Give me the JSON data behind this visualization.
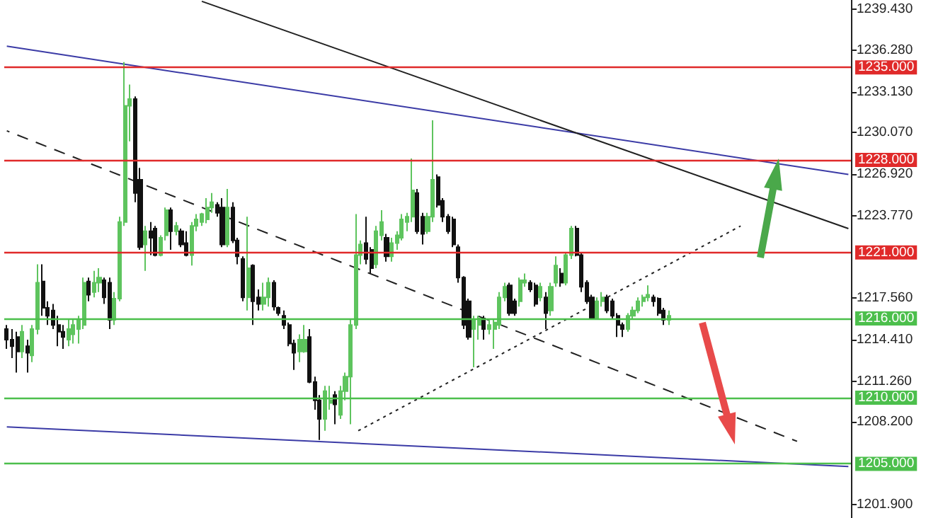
{
  "chart_data": {
    "type": "candlestick",
    "tick_labels": "y",
    "categories": [
      null,
      null,
      null,
      null,
      null,
      null,
      null,
      null,
      null,
      null,
      null,
      null,
      null,
      null,
      null,
      null,
      null,
      null,
      null,
      null,
      null,
      null,
      null,
      null,
      null,
      null,
      null,
      null,
      null,
      null,
      null,
      null,
      null,
      null,
      null,
      null,
      null,
      null,
      null,
      null,
      null,
      null,
      null,
      null,
      null,
      null,
      null,
      null,
      null,
      null,
      null,
      null,
      null,
      null,
      null,
      null,
      null,
      null,
      null,
      null,
      null,
      null,
      null,
      null,
      null,
      null,
      null,
      null,
      null,
      null,
      null,
      null,
      null,
      null,
      null,
      null,
      null,
      null,
      null,
      null,
      null,
      null,
      null,
      null,
      null,
      null,
      null,
      null,
      null,
      null,
      null,
      null,
      null,
      null,
      null,
      null,
      null,
      null,
      null,
      null,
      null,
      null,
      null,
      null,
      null,
      null,
      null,
      null,
      null,
      null,
      null,
      null,
      null,
      null,
      null,
      null,
      null,
      null,
      null,
      null,
      null,
      null,
      null,
      null,
      null,
      null,
      null,
      null,
      null,
      null,
      null,
      null,
      null,
      null,
      null,
      null,
      null,
      null,
      null,
      null,
      null,
      null,
      null,
      null,
      null,
      null,
      null,
      null,
      null,
      null,
      null,
      null,
      null,
      null,
      null,
      null,
      null,
      null,
      null,
      null,
      null,
      null,
      null,
      null,
      null
    ],
    "ohlc": [
      [
        1215.2,
        1215.5,
        1213.7,
        1214.4
      ],
      [
        1214.4,
        1215.2,
        1213.0,
        1213.9
      ],
      [
        1214.6,
        1215.0,
        1211.9,
        1213.5
      ],
      [
        1213.5,
        1215.5,
        1213.0,
        1215.0
      ],
      [
        1213.9,
        1214.4,
        1211.9,
        1213.4
      ],
      [
        1213.2,
        1215.5,
        1212.7,
        1215.2
      ],
      [
        1215.2,
        1220.1,
        1214.8,
        1218.7
      ],
      [
        1218.8,
        1220.1,
        1216.2,
        1216.8
      ],
      [
        1216.8,
        1217.3,
        1215.5,
        1216.2
      ],
      [
        1216.6,
        1217.1,
        1215.2,
        1215.5
      ],
      [
        1215.5,
        1216.2,
        1213.9,
        1215.0
      ],
      [
        1215.0,
        1215.5,
        1213.7,
        1214.6
      ],
      [
        1214.4,
        1215.9,
        1213.9,
        1215.2
      ],
      [
        1214.8,
        1216.0,
        1214.1,
        1215.5
      ],
      [
        1215.2,
        1216.2,
        1214.1,
        1215.9
      ],
      [
        1215.5,
        1219.1,
        1215.2,
        1218.7
      ],
      [
        1218.8,
        1219.1,
        1217.3,
        1217.8
      ],
      [
        1218.0,
        1219.6,
        1217.6,
        1218.7
      ],
      [
        1218.7,
        1219.8,
        1218.0,
        1219.1
      ],
      [
        1218.9,
        1219.1,
        1217.1,
        1217.6
      ],
      [
        1218.7,
        1219.1,
        1215.2,
        1215.9
      ],
      [
        1215.9,
        1218.0,
        1215.5,
        1217.5
      ],
      [
        1217.5,
        1223.7,
        1217.3,
        1223.3
      ],
      [
        1223.3,
        1235.4,
        1223.0,
        1232.1
      ],
      [
        1232.1,
        1233.7,
        1229.4,
        1232.6
      ],
      [
        1232.6,
        1232.8,
        1224.8,
        1225.5
      ],
      [
        1226.5,
        1227.4,
        1221.2,
        1221.4
      ],
      [
        1221.6,
        1223.0,
        1219.6,
        1222.6
      ],
      [
        1222.6,
        1223.3,
        1220.8,
        1222.1
      ],
      [
        1222.8,
        1223.0,
        1220.7,
        1220.8
      ],
      [
        1220.8,
        1222.3,
        1220.7,
        1222.1
      ],
      [
        1222.3,
        1224.4,
        1221.9,
        1224.2
      ],
      [
        1224.2,
        1224.4,
        1221.2,
        1222.6
      ],
      [
        1222.6,
        1223.3,
        1222.3,
        1223.0
      ],
      [
        1222.6,
        1222.8,
        1221.4,
        1221.6
      ],
      [
        1221.7,
        1222.6,
        1220.7,
        1220.8
      ],
      [
        1220.8,
        1223.3,
        1220.0,
        1223.0
      ],
      [
        1223.0,
        1223.9,
        1222.6,
        1223.5
      ],
      [
        1223.3,
        1224.0,
        1223.0,
        1223.9
      ],
      [
        1223.5,
        1225.1,
        1223.2,
        1224.4
      ],
      [
        1224.4,
        1225.5,
        1224.0,
        1224.8
      ],
      [
        1224.6,
        1224.8,
        1223.7,
        1224.0
      ],
      [
        1224.4,
        1225.1,
        1221.4,
        1221.6
      ],
      [
        1221.6,
        1225.8,
        1221.4,
        1224.4
      ],
      [
        1224.4,
        1224.8,
        1221.7,
        1221.9
      ],
      [
        1221.9,
        1222.1,
        1220.1,
        1220.7
      ],
      [
        1220.5,
        1220.7,
        1217.3,
        1217.6
      ],
      [
        1217.6,
        1223.7,
        1216.6,
        1219.8
      ],
      [
        1220.0,
        1220.1,
        1215.5,
        1217.3
      ],
      [
        1217.6,
        1218.2,
        1216.6,
        1217.1
      ],
      [
        1217.1,
        1218.7,
        1216.6,
        1217.6
      ],
      [
        1217.6,
        1219.1,
        1216.9,
        1218.7
      ],
      [
        1218.7,
        1218.9,
        1216.6,
        1216.9
      ],
      [
        1216.8,
        1216.9,
        1216.2,
        1216.4
      ],
      [
        1216.2,
        1216.6,
        1215.2,
        1215.5
      ],
      [
        1215.5,
        1215.7,
        1213.9,
        1214.1
      ],
      [
        1214.1,
        1214.4,
        1212.1,
        1213.4
      ],
      [
        1213.5,
        1214.8,
        1212.7,
        1214.4
      ],
      [
        1213.5,
        1215.5,
        1213.4,
        1214.4
      ],
      [
        1214.6,
        1215.2,
        1211.1,
        1211.2
      ],
      [
        1211.2,
        1211.6,
        1209.1,
        1209.8
      ],
      [
        1209.8,
        1210.2,
        1206.8,
        1208.4
      ],
      [
        1208.4,
        1210.9,
        1207.5,
        1210.5
      ],
      [
        1209.6,
        1210.9,
        1209.1,
        1209.8
      ],
      [
        1210.2,
        1210.5,
        1208.0,
        1209.5
      ],
      [
        1208.7,
        1210.9,
        1208.4,
        1210.5
      ],
      [
        1210.5,
        1211.9,
        1209.8,
        1211.6
      ],
      [
        1211.6,
        1215.9,
        1208.0,
        1215.5
      ],
      [
        1215.5,
        1223.9,
        1215.2,
        1220.8
      ],
      [
        1220.8,
        1221.9,
        1220.1,
        1221.6
      ],
      [
        1221.7,
        1223.7,
        1220.1,
        1220.5
      ],
      [
        1221.2,
        1221.4,
        1219.4,
        1219.8
      ],
      [
        1220.1,
        1223.0,
        1219.8,
        1222.6
      ],
      [
        1222.3,
        1224.2,
        1221.9,
        1223.3
      ],
      [
        1222.1,
        1222.4,
        1220.3,
        1220.7
      ],
      [
        1220.7,
        1222.1,
        1220.3,
        1221.7
      ],
      [
        1221.7,
        1222.6,
        1221.2,
        1222.3
      ],
      [
        1222.1,
        1223.9,
        1221.9,
        1223.5
      ],
      [
        1223.3,
        1224.0,
        1222.6,
        1223.7
      ],
      [
        1223.7,
        1228.1,
        1223.3,
        1225.7
      ],
      [
        1225.5,
        1225.8,
        1222.4,
        1222.6
      ],
      [
        1223.7,
        1224.0,
        1221.6,
        1222.4
      ],
      [
        1222.6,
        1224.0,
        1222.4,
        1223.7
      ],
      [
        1223.7,
        1231.0,
        1223.3,
        1226.5
      ],
      [
        1226.7,
        1226.9,
        1224.4,
        1224.6
      ],
      [
        1224.9,
        1225.1,
        1223.3,
        1223.7
      ],
      [
        1223.7,
        1223.9,
        1222.4,
        1222.6
      ],
      [
        1223.5,
        1223.7,
        1221.4,
        1221.6
      ],
      [
        1221.4,
        1221.6,
        1218.7,
        1219.1
      ],
      [
        1219.1,
        1219.2,
        1215.2,
        1215.5
      ],
      [
        1217.3,
        1217.5,
        1214.4,
        1214.6
      ],
      [
        1215.2,
        1216.2,
        1212.3,
        1215.9
      ],
      [
        1215.5,
        1216.2,
        1214.4,
        1216.0
      ],
      [
        1216.0,
        1216.2,
        1214.4,
        1215.2
      ],
      [
        1215.2,
        1215.9,
        1214.8,
        1215.5
      ],
      [
        1215.2,
        1215.9,
        1213.7,
        1215.7
      ],
      [
        1215.5,
        1218.0,
        1215.2,
        1217.6
      ],
      [
        1217.6,
        1218.7,
        1217.3,
        1218.4
      ],
      [
        1218.5,
        1218.7,
        1216.2,
        1216.4
      ],
      [
        1217.3,
        1217.5,
        1216.2,
        1216.4
      ],
      [
        1217.3,
        1219.1,
        1216.9,
        1218.9
      ],
      [
        1218.7,
        1219.4,
        1218.4,
        1218.9
      ],
      [
        1218.7,
        1218.9,
        1218.0,
        1218.2
      ],
      [
        1218.5,
        1218.7,
        1216.9,
        1217.1
      ],
      [
        1217.6,
        1218.7,
        1217.3,
        1218.4
      ],
      [
        1217.6,
        1218.0,
        1215.2,
        1216.4
      ],
      [
        1216.6,
        1218.7,
        1216.2,
        1218.4
      ],
      [
        1218.7,
        1220.7,
        1218.4,
        1220.0
      ],
      [
        1219.4,
        1219.8,
        1218.4,
        1218.7
      ],
      [
        1218.7,
        1221.0,
        1218.5,
        1220.8
      ],
      [
        1220.8,
        1223.0,
        1220.5,
        1222.8
      ],
      [
        1222.8,
        1223.0,
        1220.7,
        1220.8
      ],
      [
        1220.8,
        1221.0,
        1218.0,
        1218.4
      ],
      [
        1218.7,
        1218.9,
        1217.1,
        1217.3
      ],
      [
        1217.6,
        1217.8,
        1215.9,
        1216.0
      ],
      [
        1216.0,
        1217.6,
        1215.9,
        1217.3
      ],
      [
        1217.3,
        1218.0,
        1216.9,
        1217.6
      ],
      [
        1217.6,
        1217.8,
        1216.4,
        1216.6
      ],
      [
        1217.3,
        1217.5,
        1216.0,
        1216.2
      ],
      [
        1216.2,
        1216.4,
        1214.6,
        1215.5
      ],
      [
        1215.5,
        1215.7,
        1214.6,
        1215.2
      ],
      [
        1215.2,
        1216.4,
        1215.0,
        1216.2
      ],
      [
        1216.2,
        1216.9,
        1216.0,
        1216.6
      ],
      [
        1216.6,
        1217.6,
        1216.4,
        1217.3
      ],
      [
        1217.3,
        1217.8,
        1216.9,
        1217.6
      ],
      [
        1217.6,
        1218.5,
        1217.3,
        1217.8
      ],
      [
        1217.6,
        1217.8,
        1216.9,
        1217.3
      ],
      [
        1217.5,
        1217.6,
        1216.2,
        1216.4
      ],
      [
        1216.6,
        1216.8,
        1215.5,
        1215.9
      ],
      [
        1215.9,
        1216.6,
        1215.5,
        1216.2
      ],
      null,
      null,
      null,
      null,
      null,
      null,
      null,
      null,
      null,
      null,
      null,
      null,
      null,
      null,
      null,
      null,
      null,
      null,
      null,
      null,
      null,
      null,
      null,
      null,
      null,
      null,
      null,
      null,
      null,
      null,
      null,
      null,
      null,
      null,
      null
    ],
    "series": [
      {
        "type": "line",
        "color": "#3b3ba6",
        "line_style": "solid",
        "values": [
          1236.6,
          null,
          null,
          null,
          null,
          null,
          null,
          null,
          null,
          null,
          null,
          null,
          null,
          null,
          null,
          null,
          null,
          null,
          null,
          null,
          null,
          null,
          null,
          null,
          null,
          null,
          null,
          null,
          null,
          null,
          null,
          null,
          null,
          null,
          null,
          null,
          null,
          null,
          null,
          null,
          null,
          null,
          null,
          null,
          null,
          null,
          null,
          null,
          null,
          null,
          null,
          null,
          null,
          null,
          null,
          null,
          null,
          null,
          null,
          null,
          null,
          null,
          null,
          null,
          null,
          null,
          null,
          null,
          null,
          null,
          null,
          null,
          null,
          null,
          null,
          null,
          null,
          null,
          null,
          null,
          null,
          null,
          null,
          null,
          null,
          null,
          null,
          null,
          null,
          null,
          null,
          null,
          null,
          null,
          null,
          null,
          null,
          null,
          null,
          null,
          null,
          null,
          null,
          null,
          null,
          null,
          null,
          null,
          null,
          null,
          null,
          null,
          null,
          null,
          null,
          null,
          null,
          null,
          null,
          null,
          null,
          null,
          null,
          null,
          null,
          null,
          null,
          null,
          null,
          null,
          null,
          null,
          null,
          null,
          null,
          null,
          null,
          null,
          null,
          null,
          null,
          null,
          null,
          null,
          null,
          null,
          null,
          null,
          null,
          null,
          null,
          null,
          null,
          null,
          null,
          null,
          null,
          null,
          null,
          null,
          null,
          null,
          null,
          null,
          1226.9
        ]
      },
      {
        "type": "line",
        "color": "#3b3ba6",
        "line_style": "solid",
        "values": [
          1207.8,
          null,
          null,
          null,
          null,
          null,
          null,
          null,
          null,
          null,
          null,
          null,
          null,
          null,
          null,
          null,
          null,
          null,
          null,
          null,
          null,
          null,
          null,
          null,
          null,
          null,
          null,
          null,
          null,
          null,
          null,
          null,
          null,
          null,
          null,
          null,
          null,
          null,
          null,
          null,
          null,
          null,
          null,
          null,
          null,
          null,
          null,
          null,
          null,
          null,
          null,
          null,
          null,
          null,
          null,
          null,
          null,
          null,
          null,
          null,
          null,
          null,
          null,
          null,
          null,
          null,
          null,
          null,
          null,
          null,
          null,
          null,
          null,
          null,
          null,
          null,
          null,
          null,
          null,
          null,
          null,
          null,
          null,
          null,
          null,
          null,
          null,
          null,
          null,
          null,
          null,
          null,
          null,
          null,
          null,
          null,
          null,
          null,
          null,
          null,
          null,
          null,
          null,
          null,
          null,
          null,
          null,
          null,
          null,
          null,
          null,
          null,
          null,
          null,
          null,
          null,
          null,
          null,
          null,
          null,
          null,
          null,
          null,
          null,
          null,
          null,
          null,
          null,
          null,
          null,
          null,
          null,
          null,
          null,
          null,
          null,
          null,
          null,
          null,
          null,
          null,
          null,
          null,
          null,
          null,
          null,
          null,
          null,
          null,
          null,
          null,
          null,
          null,
          null,
          null,
          null,
          null,
          null,
          null,
          null,
          null,
          null,
          null,
          null,
          1204.8
        ]
      },
      {
        "type": "line",
        "color": "#202020",
        "line_style": "solid",
        "values": [
          null,
          null,
          null,
          null,
          null,
          null,
          null,
          null,
          null,
          null,
          null,
          null,
          null,
          null,
          null,
          null,
          null,
          null,
          null,
          null,
          null,
          null,
          null,
          null,
          null,
          null,
          null,
          null,
          null,
          null,
          null,
          null,
          null,
          null,
          null,
          null,
          null,
          null,
          1240.0,
          null,
          null,
          null,
          null,
          null,
          null,
          null,
          null,
          null,
          null,
          null,
          null,
          null,
          null,
          null,
          null,
          null,
          null,
          null,
          null,
          null,
          null,
          null,
          null,
          null,
          null,
          null,
          null,
          null,
          null,
          null,
          null,
          null,
          null,
          null,
          null,
          null,
          null,
          null,
          null,
          null,
          null,
          null,
          null,
          null,
          null,
          null,
          null,
          null,
          null,
          null,
          null,
          null,
          null,
          null,
          null,
          null,
          null,
          null,
          null,
          null,
          null,
          null,
          null,
          null,
          null,
          null,
          null,
          null,
          null,
          null,
          null,
          null,
          null,
          null,
          null,
          null,
          null,
          null,
          null,
          null,
          null,
          null,
          null,
          null,
          null,
          null,
          null,
          null,
          null,
          null,
          null,
          null,
          null,
          null,
          null,
          null,
          null,
          null,
          null,
          null,
          null,
          null,
          null,
          null,
          null,
          null,
          null,
          null,
          null,
          null,
          null,
          null,
          null,
          null,
          null,
          null,
          null,
          null,
          null,
          null,
          null,
          null,
          null,
          null,
          1222.8
        ]
      },
      {
        "type": "line",
        "color": "#202020",
        "line_style": "dashed",
        "values": [
          1230.2,
          null,
          null,
          null,
          null,
          null,
          null,
          null,
          null,
          null,
          null,
          null,
          null,
          null,
          null,
          null,
          null,
          null,
          null,
          null,
          null,
          null,
          null,
          null,
          null,
          null,
          null,
          null,
          null,
          null,
          null,
          null,
          null,
          null,
          null,
          null,
          null,
          null,
          null,
          null,
          null,
          null,
          null,
          null,
          null,
          null,
          null,
          null,
          null,
          null,
          null,
          null,
          null,
          null,
          null,
          null,
          null,
          null,
          null,
          null,
          null,
          null,
          null,
          null,
          null,
          null,
          null,
          null,
          null,
          null,
          null,
          null,
          null,
          null,
          null,
          null,
          null,
          null,
          null,
          null,
          null,
          null,
          null,
          null,
          null,
          null,
          null,
          null,
          null,
          null,
          null,
          null,
          null,
          null,
          null,
          null,
          null,
          null,
          null,
          null,
          null,
          null,
          null,
          null,
          null,
          null,
          null,
          null,
          null,
          null,
          null,
          null,
          null,
          null,
          null,
          null,
          null,
          null,
          null,
          null,
          null,
          null,
          null,
          null,
          null,
          null,
          null,
          null,
          null,
          null,
          null,
          null,
          null,
          null,
          null,
          null,
          null,
          null,
          null,
          null,
          null,
          null,
          null,
          null,
          null,
          null,
          null,
          null,
          null,
          null,
          null,
          null,
          null,
          null,
          1206.7,
          null,
          null,
          null,
          null,
          null,
          null,
          null,
          null,
          null,
          null
        ]
      },
      {
        "type": "line",
        "color": "#202020",
        "line_style": "dotted",
        "values": [
          null,
          null,
          null,
          null,
          null,
          null,
          null,
          null,
          null,
          null,
          null,
          null,
          null,
          null,
          null,
          null,
          null,
          null,
          null,
          null,
          null,
          null,
          null,
          null,
          null,
          null,
          null,
          null,
          null,
          null,
          null,
          null,
          null,
          null,
          null,
          null,
          null,
          null,
          null,
          null,
          null,
          null,
          null,
          null,
          null,
          null,
          null,
          null,
          null,
          null,
          null,
          null,
          null,
          null,
          null,
          null,
          null,
          null,
          null,
          null,
          null,
          null,
          null,
          null,
          null,
          null,
          null,
          null,
          1207.4,
          null,
          null,
          null,
          null,
          null,
          null,
          null,
          null,
          null,
          null,
          null,
          null,
          null,
          null,
          null,
          null,
          null,
          null,
          null,
          null,
          null,
          null,
          null,
          null,
          null,
          null,
          null,
          null,
          null,
          null,
          null,
          null,
          null,
          null,
          null,
          null,
          null,
          null,
          null,
          null,
          null,
          null,
          null,
          null,
          null,
          null,
          null,
          null,
          null,
          null,
          null,
          null,
          null,
          null,
          null,
          null,
          null,
          null,
          null,
          null,
          null,
          null,
          null,
          null,
          null,
          null,
          null,
          null,
          null,
          null,
          null,
          null,
          null,
          null,
          1223.0,
          null,
          null,
          null,
          null,
          null,
          null,
          null,
          null,
          null,
          null,
          null,
          null,
          null,
          null,
          null,
          null,
          null,
          null,
          null,
          null,
          null
        ]
      }
    ],
    "ref_lines": [
      {
        "axis": "y",
        "value": 1235,
        "label": "1235.000",
        "color": "#e02a2a"
      },
      {
        "axis": "y",
        "value": 1228,
        "label": "1228.000",
        "color": "#e02a2a"
      },
      {
        "axis": "y",
        "value": 1221,
        "label": "1221.000",
        "color": "#e02a2a"
      },
      {
        "axis": "y",
        "value": 1216,
        "label": "1216.000",
        "color": "#4cbf4c"
      },
      {
        "axis": "y",
        "value": 1210,
        "label": "1210.000",
        "color": "#4cbf4c"
      },
      {
        "axis": "y",
        "value": 1205,
        "label": "1205.000",
        "color": "#4cbf4c"
      }
    ],
    "ylim": [
      1200.9,
      1240.1
    ],
    "yticks": [
      {
        "value": 1239.43,
        "label": "1239.430"
      },
      {
        "value": 1236.28,
        "label": "1236.280"
      },
      {
        "value": 1233.13,
        "label": "1233.130"
      },
      {
        "value": 1230.07,
        "label": "1230.070"
      },
      {
        "value": 1226.92,
        "label": "1226.920"
      },
      {
        "value": 1223.77,
        "label": "1223.770"
      },
      {
        "value": 1217.56,
        "label": "1217.560"
      },
      {
        "value": 1214.41,
        "label": "1214.410"
      },
      {
        "value": 1211.26,
        "label": "1211.260"
      },
      {
        "value": 1208.2,
        "label": "1208.200"
      },
      {
        "value": 1201.9,
        "label": "1201.900"
      }
    ]
  }
}
